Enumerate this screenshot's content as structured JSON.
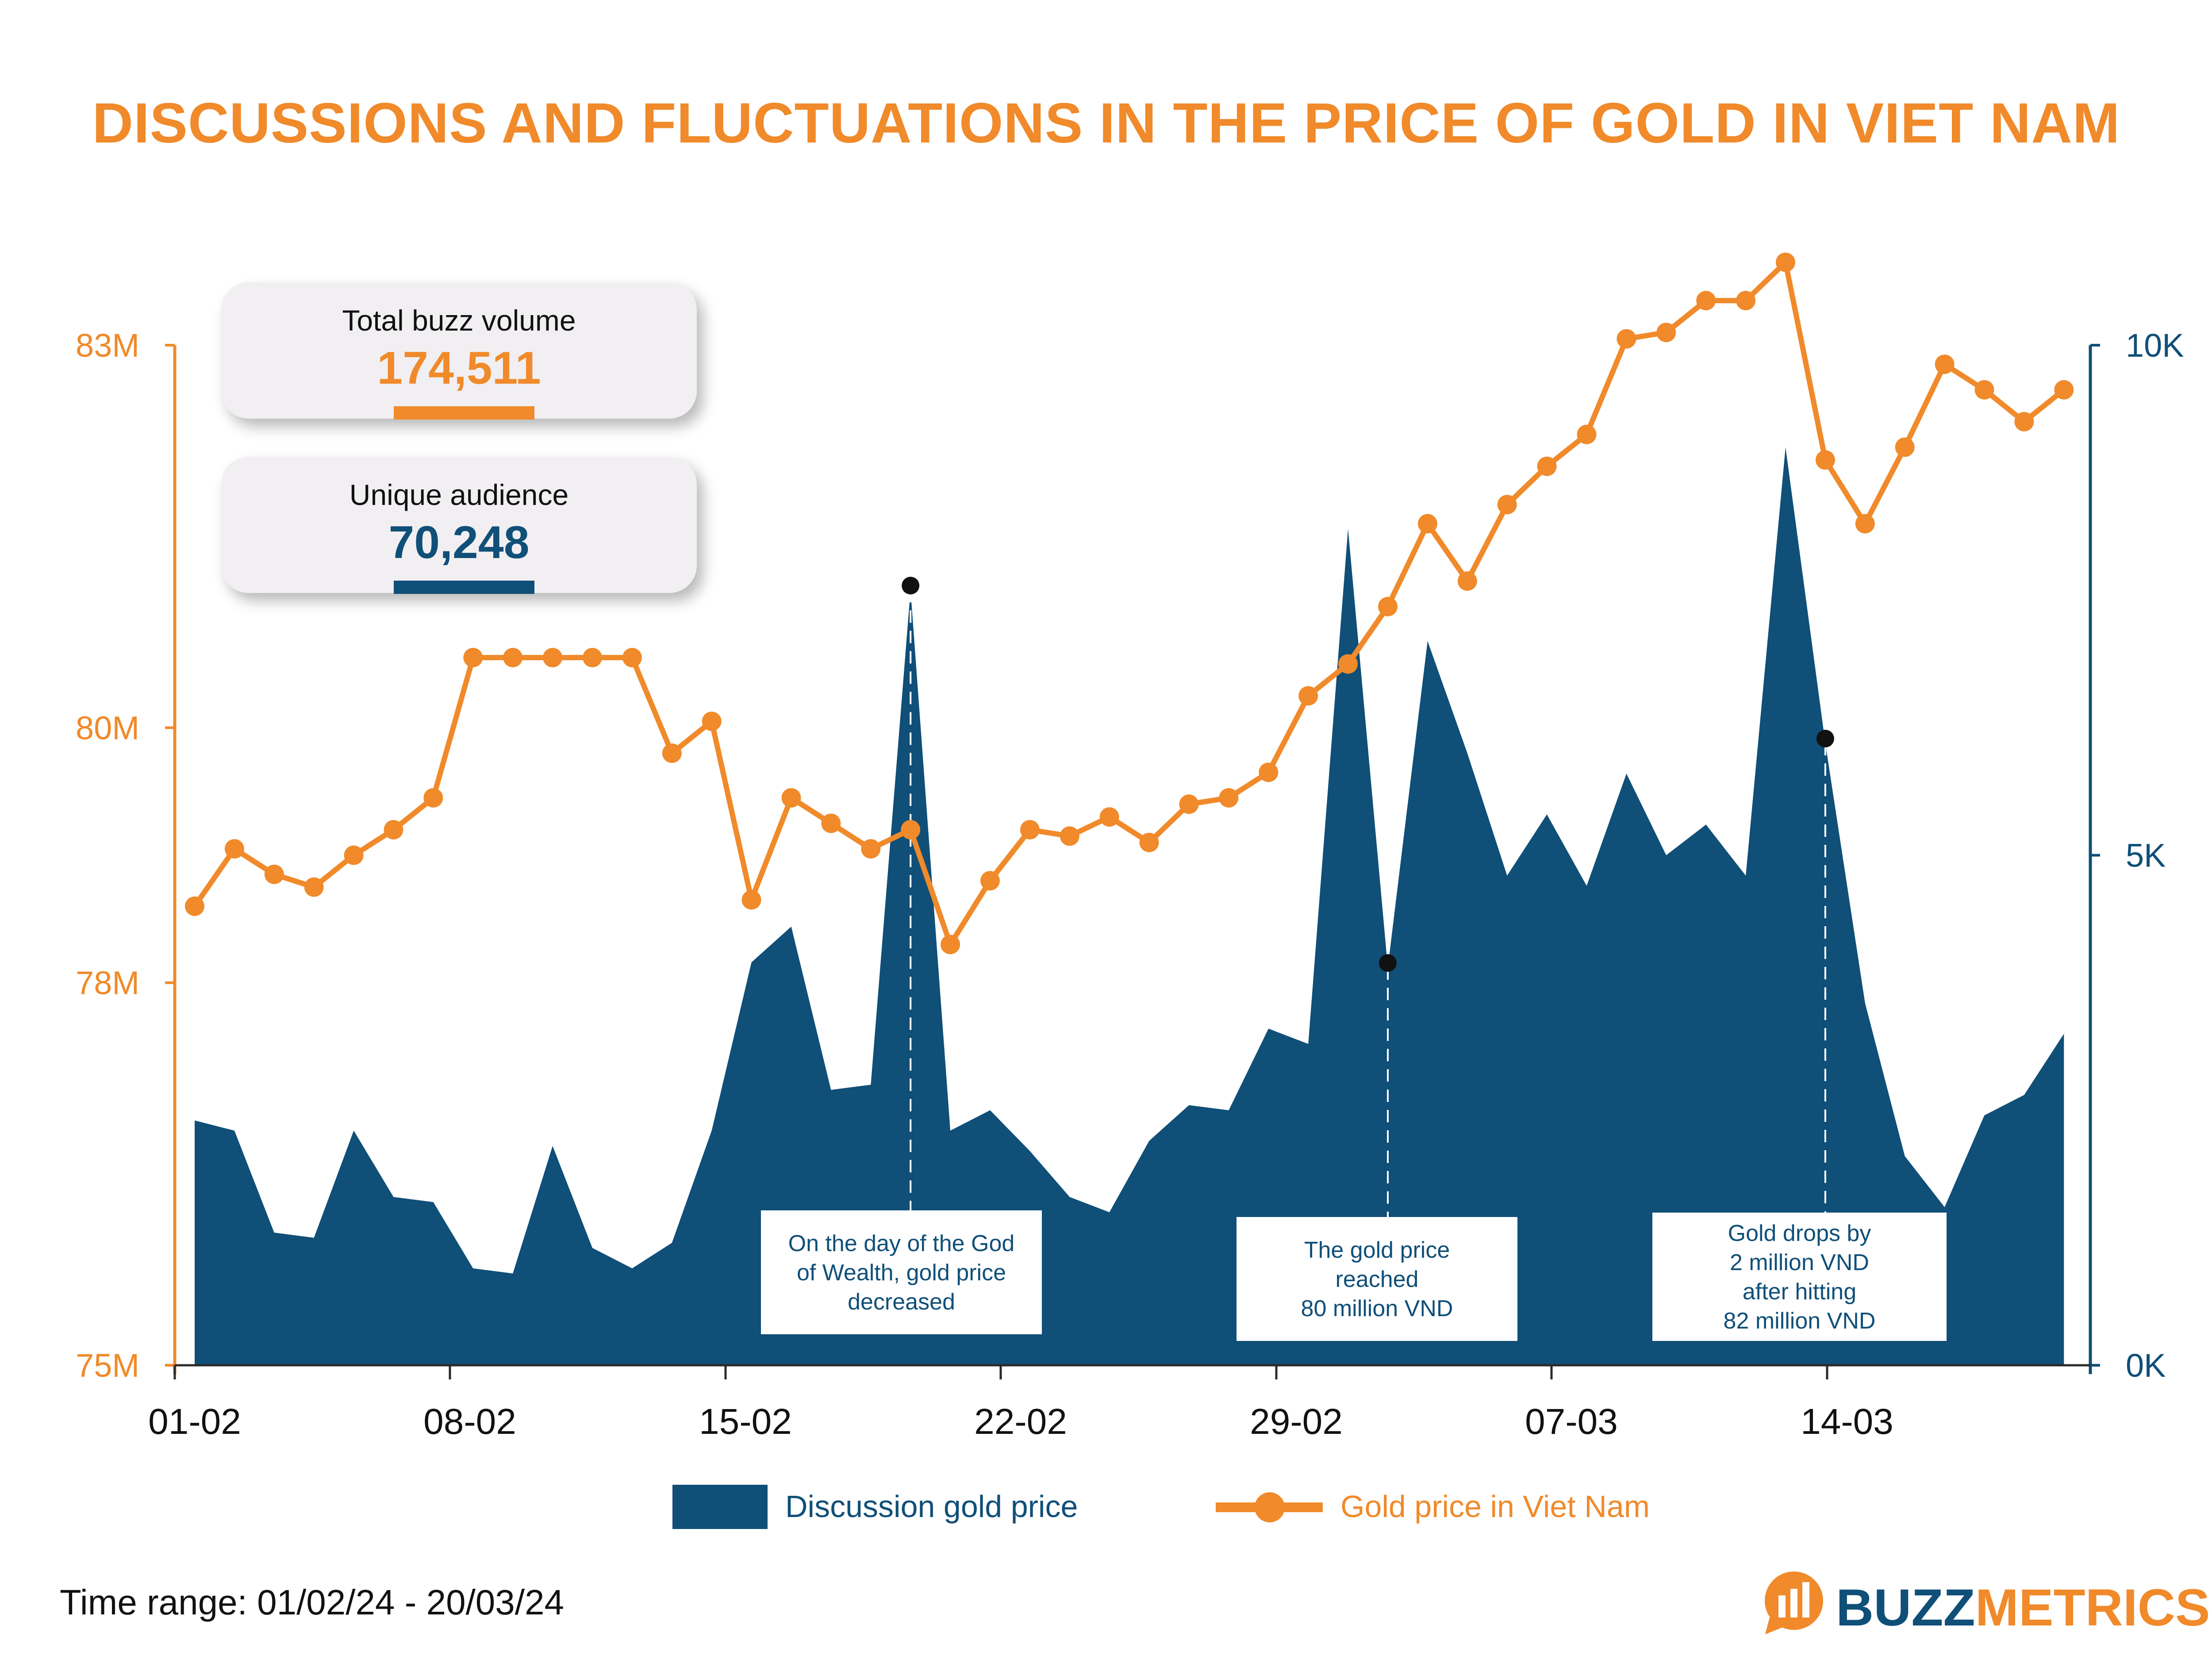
{
  "title": "DISCUSSIONS AND FLUCTUATIONS IN THE PRICE OF GOLD IN VIET NAM",
  "cards": [
    {
      "label": "Total buzz volume",
      "value": "174,511"
    },
    {
      "label": "Unique audience",
      "value": "70,248"
    }
  ],
  "footer": "Time range: 01/02/24 - 20/03/24",
  "logo": {
    "part1": "BUZZ",
    "part2": "METRICS"
  },
  "colors": {
    "gold": "#F08A2A",
    "navy": "#0f4f78"
  },
  "chart_data": {
    "type": "area+line",
    "title": "DISCUSSIONS AND FLUCTUATIONS IN THE PRICE OF GOLD IN VIET NAM",
    "x_ticks": [
      "01-02",
      "08-02",
      "15-02",
      "22-02",
      "29-02",
      "07-03",
      "14-03"
    ],
    "left_axis": {
      "ticks": [
        "75M",
        "78M",
        "80M",
        "83M"
      ],
      "tick_values": [
        75,
        78,
        80,
        83
      ],
      "range": [
        75,
        83
      ]
    },
    "right_axis": {
      "ticks": [
        "0K",
        "5K",
        "10K"
      ],
      "tick_values": [
        0,
        5,
        10
      ],
      "range": [
        0,
        10
      ]
    },
    "legend": [
      "Discussion gold price",
      "Gold price in Viet Nam"
    ],
    "series": [
      {
        "name": "Discussion gold price",
        "axis": "right",
        "unit": "K",
        "values": [
          2.4,
          2.3,
          1.3,
          1.25,
          2.3,
          1.65,
          1.6,
          0.95,
          0.9,
          2.15,
          1.15,
          0.95,
          1.2,
          2.3,
          3.95,
          4.3,
          2.7,
          2.75,
          7.6,
          2.3,
          2.5,
          2.1,
          1.65,
          1.5,
          2.2,
          2.55,
          2.5,
          3.3,
          3.15,
          8.2,
          3.9,
          7.1,
          6.0,
          4.8,
          5.4,
          4.7,
          5.8,
          5.0,
          5.3,
          4.8,
          9.0,
          6.1,
          3.55,
          2.05,
          1.55,
          2.45,
          2.65,
          3.25
        ]
      },
      {
        "name": "Gold price in Viet Nam",
        "axis": "left",
        "unit": "M",
        "values": [
          78.6,
          79.05,
          78.85,
          78.75,
          79.0,
          79.2,
          79.45,
          80.55,
          80.55,
          80.55,
          80.55,
          80.55,
          79.8,
          80.05,
          78.65,
          79.45,
          79.25,
          79.05,
          79.2,
          78.3,
          78.8,
          79.2,
          79.15,
          79.3,
          79.1,
          79.4,
          79.45,
          79.65,
          80.25,
          80.5,
          80.95,
          81.6,
          81.15,
          81.75,
          82.05,
          82.3,
          83.05,
          83.1,
          83.35,
          83.35,
          83.65,
          82.1,
          81.6,
          82.2,
          82.85,
          82.65,
          82.4,
          82.65
        ]
      }
    ],
    "annotations": [
      {
        "text_lines": [
          "On the day of the God",
          "of Wealth, gold price",
          "decreased"
        ],
        "index": 18
      },
      {
        "text_lines": [
          "The gold price",
          "reached",
          "80 million VND"
        ],
        "index": 30
      },
      {
        "text_lines": [
          "Gold drops by",
          "2 million VND",
          "after hitting",
          "82 million VND"
        ],
        "index": 41
      }
    ]
  }
}
